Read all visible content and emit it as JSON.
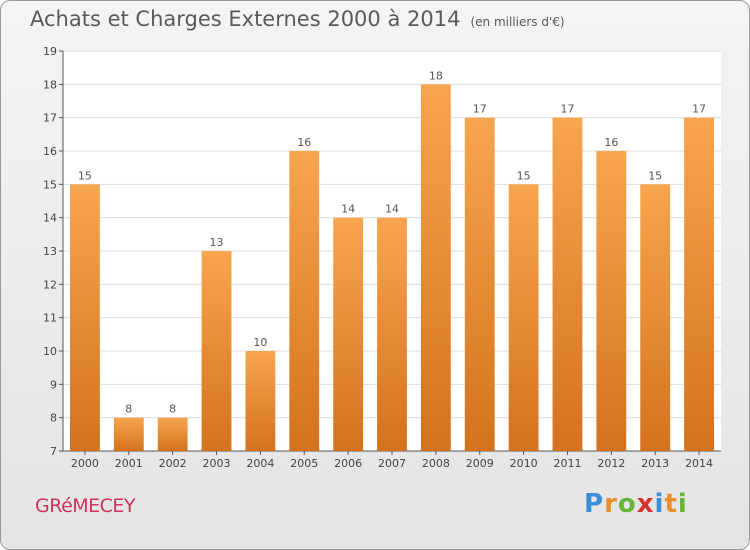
{
  "header": {
    "title": "Achats et Charges Externes 2000 à 2014",
    "subtitle": "(en milliers d'€)"
  },
  "footer": {
    "commune": "GRéMECEY",
    "logo_letters": [
      {
        "char": "P",
        "color": "#3a8ed8"
      },
      {
        "char": "r",
        "color": "#e8902c"
      },
      {
        "char": "o",
        "color": "#6ab43a"
      },
      {
        "char": "x",
        "color": "#d8322c"
      },
      {
        "char": "i",
        "color": "#3a8ed8"
      },
      {
        "char": "t",
        "color": "#e8902c"
      },
      {
        "char": "i",
        "color": "#6ab43a"
      }
    ]
  },
  "chart_data": {
    "type": "bar",
    "title": "Achats et Charges Externes 2000 à 2014",
    "subtitle": "(en milliers d'€)",
    "categories": [
      "2000",
      "2001",
      "2002",
      "2003",
      "2004",
      "2005",
      "2006",
      "2007",
      "2008",
      "2009",
      "2010",
      "2011",
      "2012",
      "2013",
      "2014"
    ],
    "values": [
      15,
      8,
      8,
      13,
      10,
      16,
      14,
      14,
      18,
      17,
      15,
      17,
      16,
      15,
      17
    ],
    "ylim": [
      7,
      19
    ],
    "yticks": [
      7,
      8,
      9,
      10,
      11,
      12,
      13,
      14,
      15,
      16,
      17,
      18,
      19
    ],
    "grid": true,
    "bar_color_top": "#f7a54e",
    "bar_color_bottom": "#d4721c",
    "plot_background": "#ffffff",
    "grid_color": "#dddddd"
  }
}
